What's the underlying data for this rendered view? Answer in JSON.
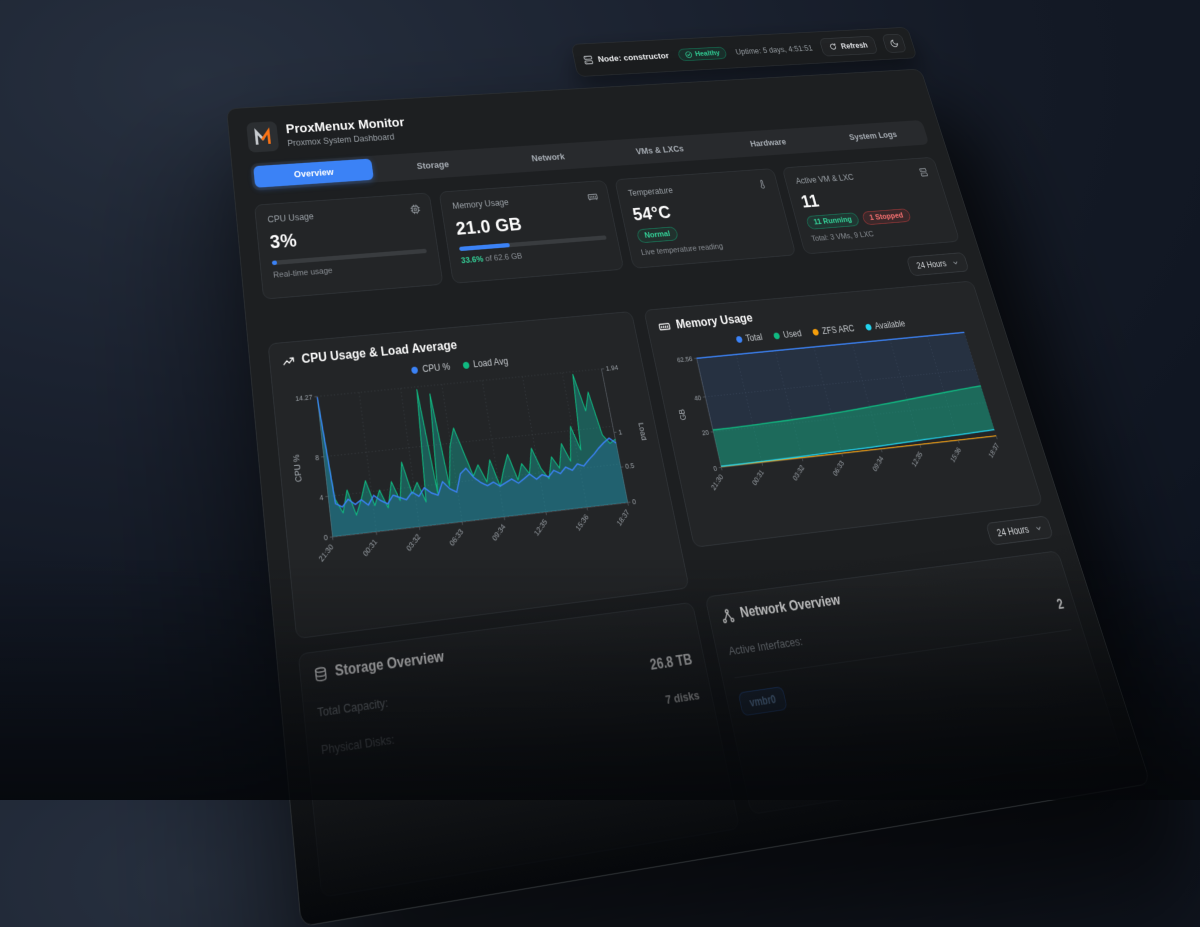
{
  "colors": {
    "accent_blue": "#3b82f6",
    "green": "#10b981",
    "green_text": "#34d399",
    "red": "#ef4444",
    "orange": "#f59e0b",
    "cyan": "#22d3ee",
    "teal_fill": "rgba(20,184,166,0.38)",
    "navy_fill": "rgba(59,130,246,0.13)",
    "panel_bg": "#1d1f21",
    "card_bg": "#232527"
  },
  "icons": {
    "topbar": "server-icon",
    "health": "check-circle-icon",
    "refresh": "refresh-icon",
    "theme": "moon-icon",
    "cpu": "cpu-chip-icon",
    "memory": "ram-icon",
    "temperature": "thermometer-icon",
    "vms": "server-stack-icon",
    "cpu_chart": "trending-up-icon",
    "memory_chart": "ram-icon",
    "storage": "hard-drive-icon",
    "network": "network-nodes-icon",
    "select": "chevron-down-icon"
  },
  "topbar": {
    "node_label": "Node: constructor",
    "health_label": "Healthy",
    "uptime": "Uptime: 5 days, 4:51:51",
    "refresh_label": "Refresh"
  },
  "header": {
    "title": "ProxMenux Monitor",
    "subtitle": "Proxmox System Dashboard"
  },
  "tabs": {
    "items": [
      {
        "label": "Overview",
        "active": true
      },
      {
        "label": "Storage",
        "active": false
      },
      {
        "label": "Network",
        "active": false
      },
      {
        "label": "VMs & LXCs",
        "active": false
      },
      {
        "label": "Hardware",
        "active": false
      },
      {
        "label": "System Logs",
        "active": false
      }
    ]
  },
  "stats": {
    "cpu": {
      "title": "CPU Usage",
      "value": "3%",
      "percent": 3,
      "caption": "Real-time usage"
    },
    "memory": {
      "title": "Memory Usage",
      "value": "21.0 GB",
      "percent": 33.6,
      "caption_percent": "33.6%",
      "caption_rest": " of 62.6 GB"
    },
    "temperature": {
      "title": "Temperature",
      "value": "54°C",
      "badge": "Normal",
      "caption": "Live temperature reading"
    },
    "vms": {
      "title": "Active VM & LXC",
      "value": "11",
      "running_badge": "11 Running",
      "stopped_badge": "1 Stopped",
      "caption": "Total: 3 VMs, 9 LXC"
    }
  },
  "range_selects": {
    "top": "24 Hours",
    "bottom": "24 Hours"
  },
  "sections": {
    "storage": {
      "title": "Storage Overview",
      "rows": [
        {
          "label": "Total Capacity:",
          "value": "26.8 TB"
        },
        {
          "label": "Physical Disks:",
          "value": "7 disks"
        }
      ]
    },
    "network": {
      "title": "Network Overview",
      "rows": [
        {
          "label": "Active Interfaces:",
          "value": "2"
        }
      ],
      "interface_badge": "vmbr0"
    }
  },
  "chart_data": [
    {
      "id": "cpu_load",
      "type": "area",
      "title": "CPU Usage & Load Average",
      "legend": [
        {
          "name": "CPU %",
          "color": "#3b82f6"
        },
        {
          "name": "Load Avg",
          "color": "#10b981"
        }
      ],
      "x_ticks": [
        "21:30",
        "00:31",
        "03:32",
        "06:33",
        "09:34",
        "12:35",
        "15:36",
        "18:37"
      ],
      "left_axis": {
        "label": "CPU %",
        "ticks": [
          0,
          4,
          8,
          14.27
        ],
        "max": 14.27
      },
      "right_axis": {
        "label": "Load",
        "ticks": [
          0,
          0.5,
          1,
          1.94
        ],
        "max": 1.94
      },
      "grid": true,
      "series": [
        {
          "name": "CPU %",
          "axis": "left",
          "color": "#3b82f6",
          "fill": "rgba(59,130,246,0.15)",
          "values": [
            14.2,
            3.2,
            2.8,
            3.5,
            2.9,
            3.3,
            2.7,
            3.6,
            3.0,
            2.6,
            3.4,
            3.1,
            2.8,
            3.5,
            3.0,
            3.8,
            3.2,
            2.9,
            4.2,
            3.4,
            3.0,
            4.8,
            5.3,
            4.3,
            3.7,
            3.3,
            3.6,
            3.1,
            3.4,
            3.7,
            3.2,
            3.6,
            4.0,
            3.4,
            3.8,
            3.5,
            4.1,
            3.7,
            4.3,
            3.9,
            4.5,
            4.2,
            4.8,
            5.3,
            5.9,
            6.4,
            6.8,
            6.2
          ]
        },
        {
          "name": "Load Avg",
          "axis": "right",
          "color": "#10b981",
          "fill": "rgba(20,184,166,0.38)",
          "values": [
            1.9,
            0.5,
            0.3,
            0.6,
            0.25,
            0.45,
            0.7,
            0.35,
            0.55,
            0.3,
            0.65,
            0.38,
            0.9,
            0.45,
            0.6,
            0.32,
            1.9,
            0.42,
            1.82,
            0.5,
            1.05,
            1.3,
            0.95,
            0.6,
            0.75,
            0.5,
            0.8,
            0.42,
            0.65,
            0.85,
            0.48,
            0.7,
            0.55,
            0.9,
            0.6,
            0.45,
            0.75,
            0.58,
            0.92,
            0.66,
            1.15,
            0.8,
            1.9,
            1.35,
            1.62,
            0.98,
            0.85,
            0.9
          ]
        }
      ]
    },
    {
      "id": "memory",
      "type": "area",
      "title": "Memory Usage",
      "legend": [
        {
          "name": "Total",
          "color": "#3b82f6"
        },
        {
          "name": "Used",
          "color": "#10b981"
        },
        {
          "name": "ZFS ARC",
          "color": "#f59e0b"
        },
        {
          "name": "Available",
          "color": "#22d3ee"
        }
      ],
      "x_ticks": [
        "21:30",
        "00:31",
        "03:32",
        "06:33",
        "09:34",
        "12:35",
        "15:36",
        "18:37"
      ],
      "y_axis": {
        "label": "GB",
        "ticks": [
          0,
          20,
          40,
          62.56
        ],
        "max": 62.56
      },
      "grid": true,
      "series": [
        {
          "name": "Total",
          "color": "#3b82f6",
          "values": [
            62.56,
            62.56,
            62.56,
            62.56,
            62.56,
            62.56,
            62.56,
            62.56,
            62.56,
            62.56,
            62.56,
            62.56,
            62.56,
            62.56,
            62.56,
            62.56
          ]
        },
        {
          "name": "Used",
          "color": "#10b981",
          "values": [
            21.0,
            21.1,
            21.3,
            21.6,
            21.9,
            22.3,
            22.8,
            23.4,
            24.1,
            24.9,
            25.7,
            26.6,
            27.5,
            28.4,
            29.2,
            29.9
          ]
        },
        {
          "name": "ZFS ARC",
          "color": "#f59e0b",
          "values": [
            0.4,
            0.4,
            0.4,
            0.4,
            0.4,
            0.4,
            0.4,
            0.4,
            0.4,
            0.4,
            0.4,
            0.4,
            0.4,
            0.4,
            0.4,
            0.4
          ]
        },
        {
          "name": "Available",
          "color": "#22d3ee",
          "values": [
            0.6,
            0.7,
            0.8,
            0.9,
            1.0,
            1.2,
            1.4,
            1.6,
            1.8,
            2.1,
            2.4,
            2.7,
            3.0,
            3.3,
            3.6,
            3.9
          ]
        }
      ]
    }
  ]
}
